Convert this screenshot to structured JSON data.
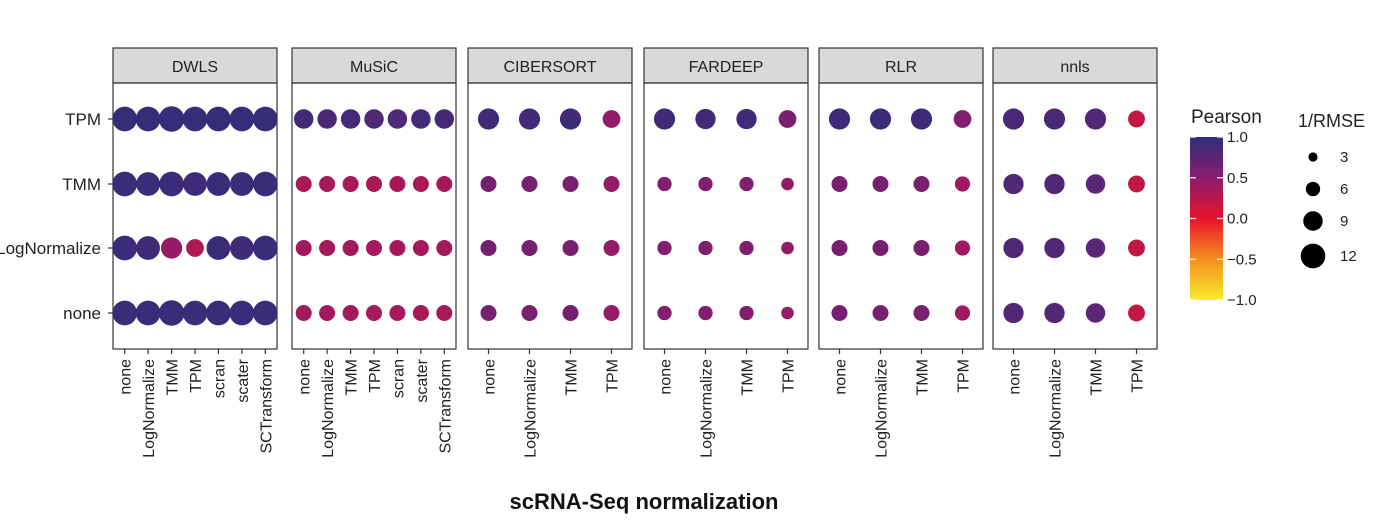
{
  "chart_data": {
    "type": "scatter",
    "xlabel": "scRNA-Seq normalization",
    "ylabel": "",
    "y_categories": [
      "TPM",
      "TMM",
      "LogNormalize",
      "none"
    ],
    "panels": [
      {
        "name": "DWLS",
        "x_categories": [
          "none",
          "LogNormalize",
          "TMM",
          "TPM",
          "scran",
          "scater",
          "SCTransform"
        ],
        "points": {
          "TPM": {
            "pearson": [
              0.95,
              0.95,
              0.96,
              0.95,
              0.95,
              0.95,
              0.95
            ],
            "inv_rmse": [
              12,
              12,
              12.5,
              12,
              12,
              12,
              12
            ]
          },
          "TMM": {
            "pearson": [
              0.93,
              0.93,
              0.93,
              0.92,
              0.93,
              0.93,
              0.93
            ],
            "inv_rmse": [
              12,
              11.5,
              12,
              11.5,
              11.5,
              11.5,
              12
            ]
          },
          "LogNormalize": {
            "pearson": [
              0.93,
              0.92,
              0.45,
              0.3,
              0.93,
              0.92,
              0.93
            ],
            "inv_rmse": [
              12,
              11.5,
              10,
              8,
              11.5,
              11.5,
              12
            ]
          },
          "none": {
            "pearson": [
              0.93,
              0.93,
              0.93,
              0.93,
              0.93,
              0.93,
              0.93
            ],
            "inv_rmse": [
              12,
              12,
              12.5,
              12,
              12,
              12,
              12
            ]
          }
        }
      },
      {
        "name": "MuSiC",
        "x_categories": [
          "none",
          "LogNormalize",
          "TMM",
          "TPM",
          "scran",
          "scater",
          "SCTransform"
        ],
        "points": {
          "TPM": {
            "pearson": [
              0.88,
              0.85,
              0.87,
              0.83,
              0.83,
              0.87,
              0.88
            ],
            "inv_rmse": [
              9,
              9,
              9,
              9,
              9,
              9,
              9
            ]
          },
          "TMM": {
            "pearson": [
              0.35,
              0.35,
              0.35,
              0.33,
              0.33,
              0.33,
              0.33
            ],
            "inv_rmse": [
              7,
              7,
              7,
              7,
              7,
              7,
              7
            ]
          },
          "LogNormalize": {
            "pearson": [
              0.38,
              0.37,
              0.37,
              0.35,
              0.35,
              0.35,
              0.35
            ],
            "inv_rmse": [
              7,
              7,
              7,
              7,
              7,
              7,
              7
            ]
          },
          "none": {
            "pearson": [
              0.38,
              0.37,
              0.36,
              0.35,
              0.34,
              0.34,
              0.34
            ],
            "inv_rmse": [
              7,
              7,
              7,
              7,
              7,
              7,
              7
            ]
          }
        }
      },
      {
        "name": "CIBERSORT",
        "x_categories": [
          "none",
          "LogNormalize",
          "TMM",
          "TPM"
        ],
        "points": {
          "TPM": {
            "pearson": [
              0.9,
              0.9,
              0.9,
              0.45
            ],
            "inv_rmse": [
              10,
              10,
              10,
              8
            ]
          },
          "TMM": {
            "pearson": [
              0.6,
              0.6,
              0.6,
              0.45
            ],
            "inv_rmse": [
              7,
              7,
              7,
              7
            ]
          },
          "LogNormalize": {
            "pearson": [
              0.6,
              0.6,
              0.6,
              0.45
            ],
            "inv_rmse": [
              7,
              7,
              7,
              7
            ]
          },
          "none": {
            "pearson": [
              0.6,
              0.6,
              0.6,
              0.45
            ],
            "inv_rmse": [
              7,
              7,
              7,
              7
            ]
          }
        }
      },
      {
        "name": "FARDEEP",
        "x_categories": [
          "none",
          "LogNormalize",
          "TMM",
          "TPM"
        ],
        "points": {
          "TPM": {
            "pearson": [
              0.9,
              0.9,
              0.9,
              0.6
            ],
            "inv_rmse": [
              10,
              9.5,
              9.5,
              8
            ]
          },
          "TMM": {
            "pearson": [
              0.55,
              0.55,
              0.55,
              0.45
            ],
            "inv_rmse": [
              6,
              6,
              6,
              5
            ]
          },
          "LogNormalize": {
            "pearson": [
              0.55,
              0.55,
              0.55,
              0.45
            ],
            "inv_rmse": [
              6,
              6,
              6,
              5
            ]
          },
          "none": {
            "pearson": [
              0.55,
              0.55,
              0.55,
              0.45
            ],
            "inv_rmse": [
              6,
              6,
              6,
              5
            ]
          }
        }
      },
      {
        "name": "RLR",
        "x_categories": [
          "none",
          "LogNormalize",
          "TMM",
          "TPM"
        ],
        "points": {
          "TPM": {
            "pearson": [
              0.92,
              0.92,
              0.92,
              0.55
            ],
            "inv_rmse": [
              10,
              10,
              10,
              8
            ]
          },
          "TMM": {
            "pearson": [
              0.6,
              0.6,
              0.6,
              0.4
            ],
            "inv_rmse": [
              7,
              7,
              7,
              6.5
            ]
          },
          "LogNormalize": {
            "pearson": [
              0.6,
              0.6,
              0.6,
              0.4
            ],
            "inv_rmse": [
              7,
              7,
              7,
              6.5
            ]
          },
          "none": {
            "pearson": [
              0.6,
              0.6,
              0.6,
              0.4
            ],
            "inv_rmse": [
              7,
              7,
              7,
              6.5
            ]
          }
        }
      },
      {
        "name": "nnls",
        "x_categories": [
          "none",
          "LogNormalize",
          "TMM",
          "TPM"
        ],
        "points": {
          "TPM": {
            "pearson": [
              0.85,
              0.85,
              0.8,
              0.2
            ],
            "inv_rmse": [
              10,
              10,
              10,
              7.5
            ]
          },
          "TMM": {
            "pearson": [
              0.8,
              0.8,
              0.75,
              0.2
            ],
            "inv_rmse": [
              9.5,
              9.5,
              9,
              7.5
            ]
          },
          "LogNormalize": {
            "pearson": [
              0.8,
              0.8,
              0.75,
              0.2
            ],
            "inv_rmse": [
              9.5,
              9.5,
              9,
              7.5
            ]
          },
          "none": {
            "pearson": [
              0.8,
              0.8,
              0.75,
              0.2
            ],
            "inv_rmse": [
              9.5,
              9.5,
              9,
              7.5
            ]
          }
        }
      }
    ],
    "color_legend": {
      "title": "Pearson",
      "range": [
        -1.0,
        1.0
      ],
      "tick_labels": [
        "1.0",
        "0.5",
        "0.0",
        "−0.5",
        "−1.0"
      ],
      "tick_values": [
        1.0,
        0.5,
        0.0,
        -0.5,
        -1.0
      ],
      "colors": [
        "#2d2f7a",
        "#8a1c6e",
        "#e8132b",
        "#f58e1e",
        "#f7ec2c"
      ]
    },
    "size_legend": {
      "title": "1/RMSE",
      "labels": [
        "3",
        "6",
        "9",
        "12"
      ],
      "values": [
        3,
        6,
        9,
        12
      ]
    },
    "grid": false,
    "legend_position": "right"
  }
}
